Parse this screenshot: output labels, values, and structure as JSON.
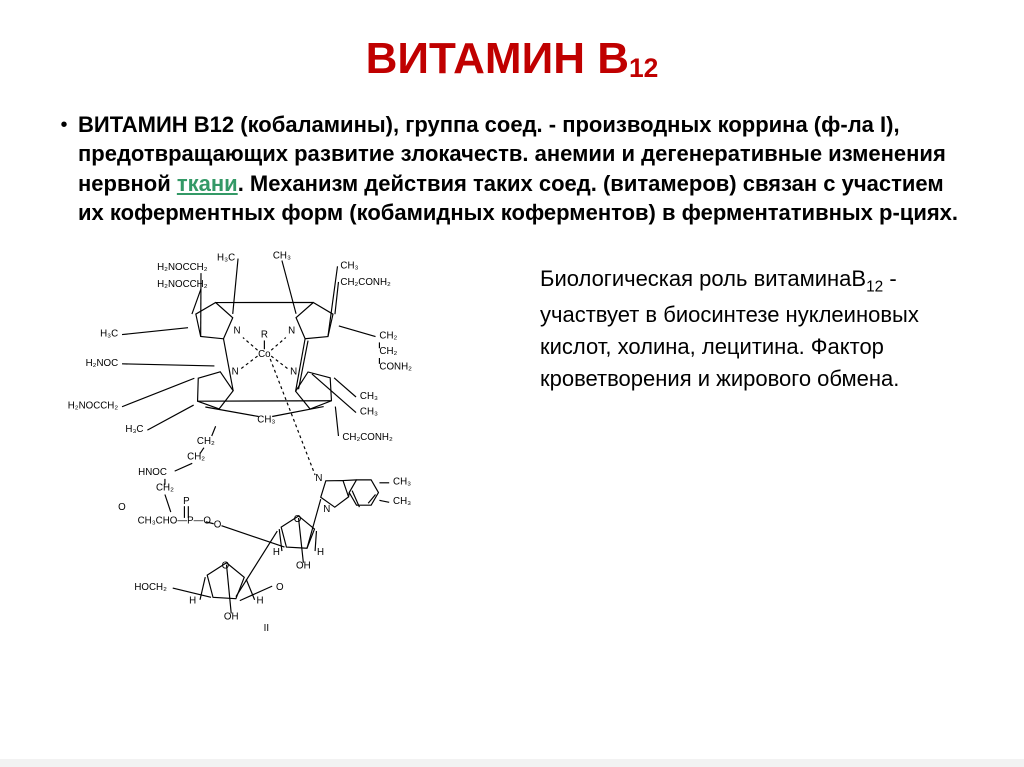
{
  "title": {
    "text_html": "ВИТАМИН В<sub>12</sub>",
    "color": "#c00000"
  },
  "main_paragraph": {
    "lead": "ВИТАМИН В12",
    "body_before_link": " (кобаламины), группа соед. - производных коррина (ф-ла I), предотвращающих развитие злокачеств. анемии и дегенеративные изменения нервной ",
    "link_text": "ткани",
    "link_color": "#339966",
    "body_after_link": ". Механизм действия таких соед. (витамеров) связан с участием их коферментных форм (кобамидных коферментов) в ферментативных р-циях."
  },
  "side_paragraph": {
    "html": "Биологическая роль витаминаB<sub>12</sub> - участвует в биосинтезе нуклеиновых кислот, холина, лецитина. Фактор кроветворения и жирового обмена."
  },
  "molecule": {
    "center_label": "Co",
    "r_label": "R",
    "n_label": "N",
    "groups": {
      "ch3": "CH₃",
      "ch2": "CH₂",
      "h": "H",
      "oh": "OH",
      "conh2": "CONH₂",
      "ch2conh2": "CH₂CONH₂",
      "h2nocch2": "H₂NOCCH₂",
      "h2noc": "H₂NOC",
      "hnoc": "HNOC",
      "h3c": "H₃C",
      "o": "O",
      "p": "P",
      "hoch2": "HOCH₂",
      "ch3chop": "CH₃CHO—P—O",
      "II": "II"
    },
    "stroke_color": "#000000",
    "label_font_size": 10
  },
  "colors": {
    "background": "#ffffff",
    "title": "#c00000",
    "text": "#000000",
    "link": "#339966"
  }
}
